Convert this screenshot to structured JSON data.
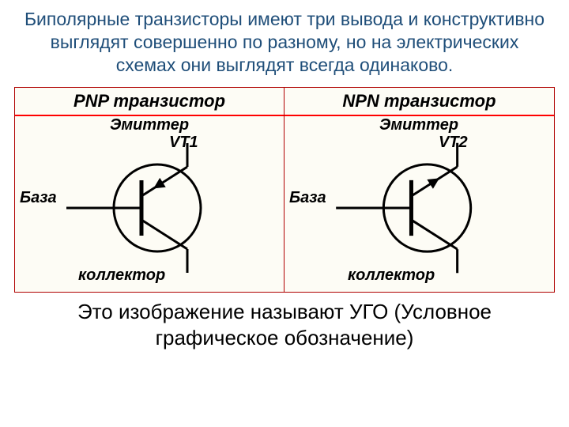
{
  "intro_text": "Биполярные транзисторы имеют три вывода и конструктивно выглядят совершенно по разному, но на электрических схемах они выглядят всегда одинаково.",
  "outtro_text": "Это изображение называют УГО (Условное графическое обозначение)",
  "figure": {
    "border_color": "#b00000",
    "redline_color": "#ff0000",
    "cell_bg": "#fdfcf5",
    "title_fontsize": 22,
    "label_fontsize": 20,
    "refdes_fontsize": 20,
    "stroke_width": 3,
    "circle_stroke": "#000000",
    "line_stroke": "#000000",
    "left": {
      "title": "PNP транзистор",
      "refdes": "VT1",
      "emitter_label": "Эмиттер",
      "base_label": "База",
      "collector_label": "коллектор",
      "arrow_dir": "in"
    },
    "right": {
      "title": "NPN транзистор",
      "refdes": "VT2",
      "emitter_label": "Эмиттер",
      "base_label": "База",
      "collector_label": "коллектор",
      "arrow_dir": "out"
    }
  }
}
